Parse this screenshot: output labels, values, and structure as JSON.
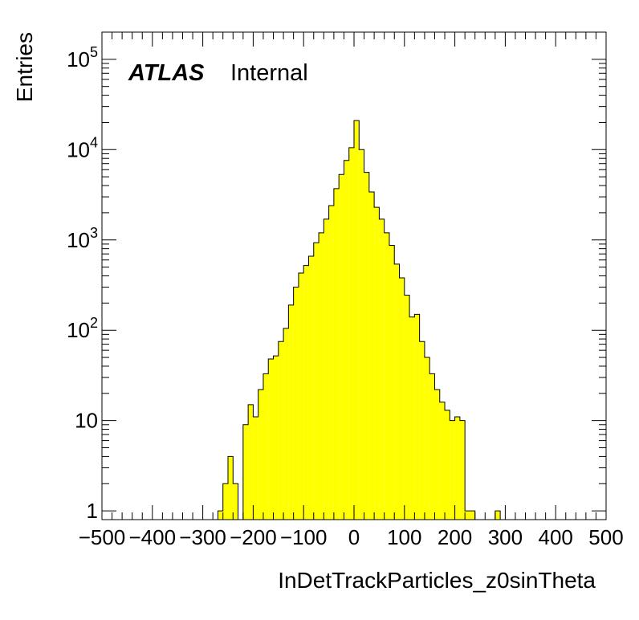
{
  "chart_data": {
    "type": "bar",
    "subtype": "histogram",
    "xlabel": "InDetTrackParticles_z0sinTheta",
    "ylabel": "Entries",
    "label_bold": "ATLAS",
    "label_text": "Internal",
    "xlim": [
      -500,
      500
    ],
    "ylim": [
      0.8,
      200000
    ],
    "yscale": "log",
    "bin_width": 10,
    "fill_color": "#ffff00",
    "line_color": "#000000",
    "xticks": [
      "-500",
      "-400",
      "-300",
      "-200",
      "-100",
      "0",
      "100",
      "200",
      "300",
      "400",
      "500"
    ],
    "yticks": [
      {
        "value": 1,
        "base": "1",
        "exp": ""
      },
      {
        "value": 10,
        "base": "10",
        "exp": ""
      },
      {
        "value": 100,
        "base": "10",
        "exp": "2"
      },
      {
        "value": 1000,
        "base": "10",
        "exp": "3"
      },
      {
        "value": 10000,
        "base": "10",
        "exp": "4"
      },
      {
        "value": 100000,
        "base": "10",
        "exp": "5"
      }
    ],
    "bins": [
      {
        "x": -270,
        "y": 1
      },
      {
        "x": -260,
        "y": 2
      },
      {
        "x": -250,
        "y": 4
      },
      {
        "x": -240,
        "y": 2
      },
      {
        "x": -220,
        "y": 9
      },
      {
        "x": -210,
        "y": 15
      },
      {
        "x": -200,
        "y": 11
      },
      {
        "x": -190,
        "y": 22
      },
      {
        "x": -180,
        "y": 33
      },
      {
        "x": -170,
        "y": 48
      },
      {
        "x": -160,
        "y": 52
      },
      {
        "x": -150,
        "y": 75
      },
      {
        "x": -140,
        "y": 105
      },
      {
        "x": -130,
        "y": 190
      },
      {
        "x": -120,
        "y": 300
      },
      {
        "x": -110,
        "y": 430
      },
      {
        "x": -100,
        "y": 520
      },
      {
        "x": -90,
        "y": 660
      },
      {
        "x": -80,
        "y": 930
      },
      {
        "x": -70,
        "y": 1200
      },
      {
        "x": -60,
        "y": 1700
      },
      {
        "x": -50,
        "y": 2400
      },
      {
        "x": -40,
        "y": 3700
      },
      {
        "x": -30,
        "y": 5300
      },
      {
        "x": -20,
        "y": 7600
      },
      {
        "x": -10,
        "y": 10500
      },
      {
        "x": 0,
        "y": 21000
      },
      {
        "x": 10,
        "y": 10000
      },
      {
        "x": 20,
        "y": 5600
      },
      {
        "x": 30,
        "y": 3400
      },
      {
        "x": 40,
        "y": 2300
      },
      {
        "x": 50,
        "y": 1700
      },
      {
        "x": 60,
        "y": 1200
      },
      {
        "x": 70,
        "y": 870
      },
      {
        "x": 80,
        "y": 540
      },
      {
        "x": 90,
        "y": 380
      },
      {
        "x": 100,
        "y": 245
      },
      {
        "x": 110,
        "y": 140
      },
      {
        "x": 120,
        "y": 150
      },
      {
        "x": 130,
        "y": 75
      },
      {
        "x": 140,
        "y": 50
      },
      {
        "x": 150,
        "y": 33
      },
      {
        "x": 160,
        "y": 22
      },
      {
        "x": 170,
        "y": 16
      },
      {
        "x": 180,
        "y": 13
      },
      {
        "x": 190,
        "y": 10
      },
      {
        "x": 200,
        "y": 11
      },
      {
        "x": 210,
        "y": 10
      },
      {
        "x": 220,
        "y": 1
      },
      {
        "x": 230,
        "y": 1
      },
      {
        "x": 280,
        "y": 1
      }
    ]
  }
}
